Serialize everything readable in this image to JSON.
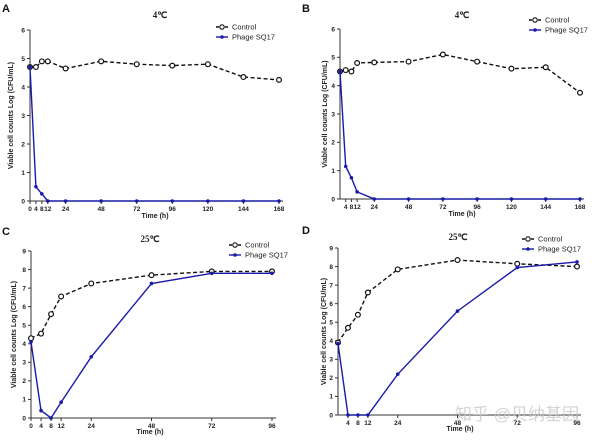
{
  "watermark": "知乎 @贝纳基因",
  "chart_data": [
    {
      "type": "line",
      "panel": "A",
      "title": "4℃",
      "xlabel": "Time (h)",
      "ylabel": "Viable cell counts Log (CFU/mL)",
      "xticks": [
        0,
        4,
        8,
        12,
        24,
        48,
        72,
        96,
        120,
        144,
        168
      ],
      "xtick_labels": [
        "0",
        "4",
        "8",
        "12",
        "24",
        "48",
        "72",
        "96",
        "120",
        "144",
        "168"
      ],
      "yticks": [
        0,
        1,
        2,
        3,
        4,
        5,
        6
      ],
      "xlim": [
        0,
        168
      ],
      "ylim": [
        0,
        6
      ],
      "legend": "top-right",
      "series": [
        {
          "name": "Control",
          "style": "dashed",
          "color": "#111111",
          "x": [
            0,
            4,
            8,
            12,
            24,
            48,
            72,
            96,
            120,
            144,
            168
          ],
          "y": [
            4.7,
            4.7,
            4.9,
            4.9,
            4.65,
            4.9,
            4.8,
            4.75,
            4.8,
            4.35,
            4.25
          ]
        },
        {
          "name": "Phage SQ17",
          "style": "solid",
          "color": "#1a1aa8",
          "x": [
            0,
            4,
            8,
            12,
            24,
            48,
            72,
            96,
            120,
            144,
            168
          ],
          "y": [
            4.7,
            0.5,
            0.25,
            0,
            0,
            0,
            0,
            0,
            0,
            0,
            0
          ]
        }
      ]
    },
    {
      "type": "line",
      "panel": "B",
      "title": "4℃",
      "xlabel": "Time (h)",
      "ylabel": "Viable cell counts Log (CFU/mL)",
      "xticks": [
        4,
        8,
        12,
        24,
        48,
        72,
        96,
        120,
        144,
        168
      ],
      "xtick_labels": [
        "4",
        "8",
        "12",
        "24",
        "48",
        "72",
        "96",
        "120",
        "144",
        "168"
      ],
      "yticks": [
        0,
        1,
        2,
        3,
        4,
        5,
        6
      ],
      "xlim": [
        0,
        168
      ],
      "ylim": [
        0,
        6
      ],
      "legend": "top-right",
      "series": [
        {
          "name": "Control",
          "style": "dashed",
          "color": "#111111",
          "x": [
            0,
            4,
            8,
            12,
            24,
            48,
            72,
            96,
            120,
            144,
            168
          ],
          "y": [
            4.5,
            4.55,
            4.5,
            4.8,
            4.82,
            4.85,
            5.1,
            4.85,
            4.6,
            4.65,
            3.75
          ]
        },
        {
          "name": "Phage SQ17",
          "style": "solid",
          "color": "#1a1aa8",
          "x": [
            0,
            4,
            8,
            12,
            24,
            48,
            72,
            96,
            120,
            144,
            168
          ],
          "y": [
            4.5,
            1.15,
            0.75,
            0.25,
            0,
            0,
            0,
            0,
            0,
            0,
            0
          ]
        }
      ]
    },
    {
      "type": "line",
      "panel": "C",
      "title": "25℃",
      "xlabel": "Time (h)",
      "ylabel": "Viable cell counts Log (CFU/mL)",
      "xticks": [
        0,
        4,
        8,
        12,
        24,
        48,
        72,
        96
      ],
      "xtick_labels": [
        "0",
        "4",
        "8",
        "12",
        "24",
        "48",
        "72",
        "96"
      ],
      "yticks": [
        0,
        1,
        2,
        3,
        4,
        5,
        6,
        7,
        8,
        9
      ],
      "xlim": [
        0,
        96
      ],
      "ylim": [
        0,
        9
      ],
      "legend": "top-right",
      "series": [
        {
          "name": "Control",
          "style": "dashed",
          "color": "#111111",
          "x": [
            0,
            4,
            8,
            12,
            24,
            48,
            72,
            96
          ],
          "y": [
            4.3,
            4.55,
            5.6,
            6.55,
            7.25,
            7.7,
            7.9,
            7.9
          ]
        },
        {
          "name": "Phage SQ17",
          "style": "solid",
          "color": "#1a1aa8",
          "x": [
            0,
            4,
            8,
            12,
            24,
            48,
            72,
            96
          ],
          "y": [
            4.1,
            0.4,
            0,
            0.85,
            3.3,
            7.25,
            7.8,
            7.8
          ]
        }
      ]
    },
    {
      "type": "line",
      "panel": "D",
      "title": "25℃",
      "xlabel": "Time (h)",
      "ylabel": "Viable cell counts Log (CFU/mL)",
      "xticks": [
        4,
        8,
        12,
        24,
        48,
        72,
        96
      ],
      "xtick_labels": [
        "4",
        "8",
        "12",
        "24",
        "48",
        "72",
        "96"
      ],
      "yticks": [
        0,
        1,
        2,
        3,
        4,
        5,
        6,
        7,
        8,
        9
      ],
      "xlim": [
        0,
        96
      ],
      "ylim": [
        0,
        9
      ],
      "legend": "top-right",
      "series": [
        {
          "name": "Control",
          "style": "dashed",
          "color": "#111111",
          "x": [
            0,
            4,
            8,
            12,
            24,
            48,
            72,
            96
          ],
          "y": [
            3.9,
            4.7,
            5.4,
            6.6,
            7.85,
            8.35,
            8.15,
            8.0
          ]
        },
        {
          "name": "Phage SQ17",
          "style": "solid",
          "color": "#1a1aa8",
          "x": [
            0,
            4,
            8,
            12,
            24,
            48,
            72,
            96
          ],
          "y": [
            3.85,
            0,
            0,
            0,
            2.2,
            5.6,
            7.95,
            8.25
          ]
        }
      ]
    }
  ]
}
